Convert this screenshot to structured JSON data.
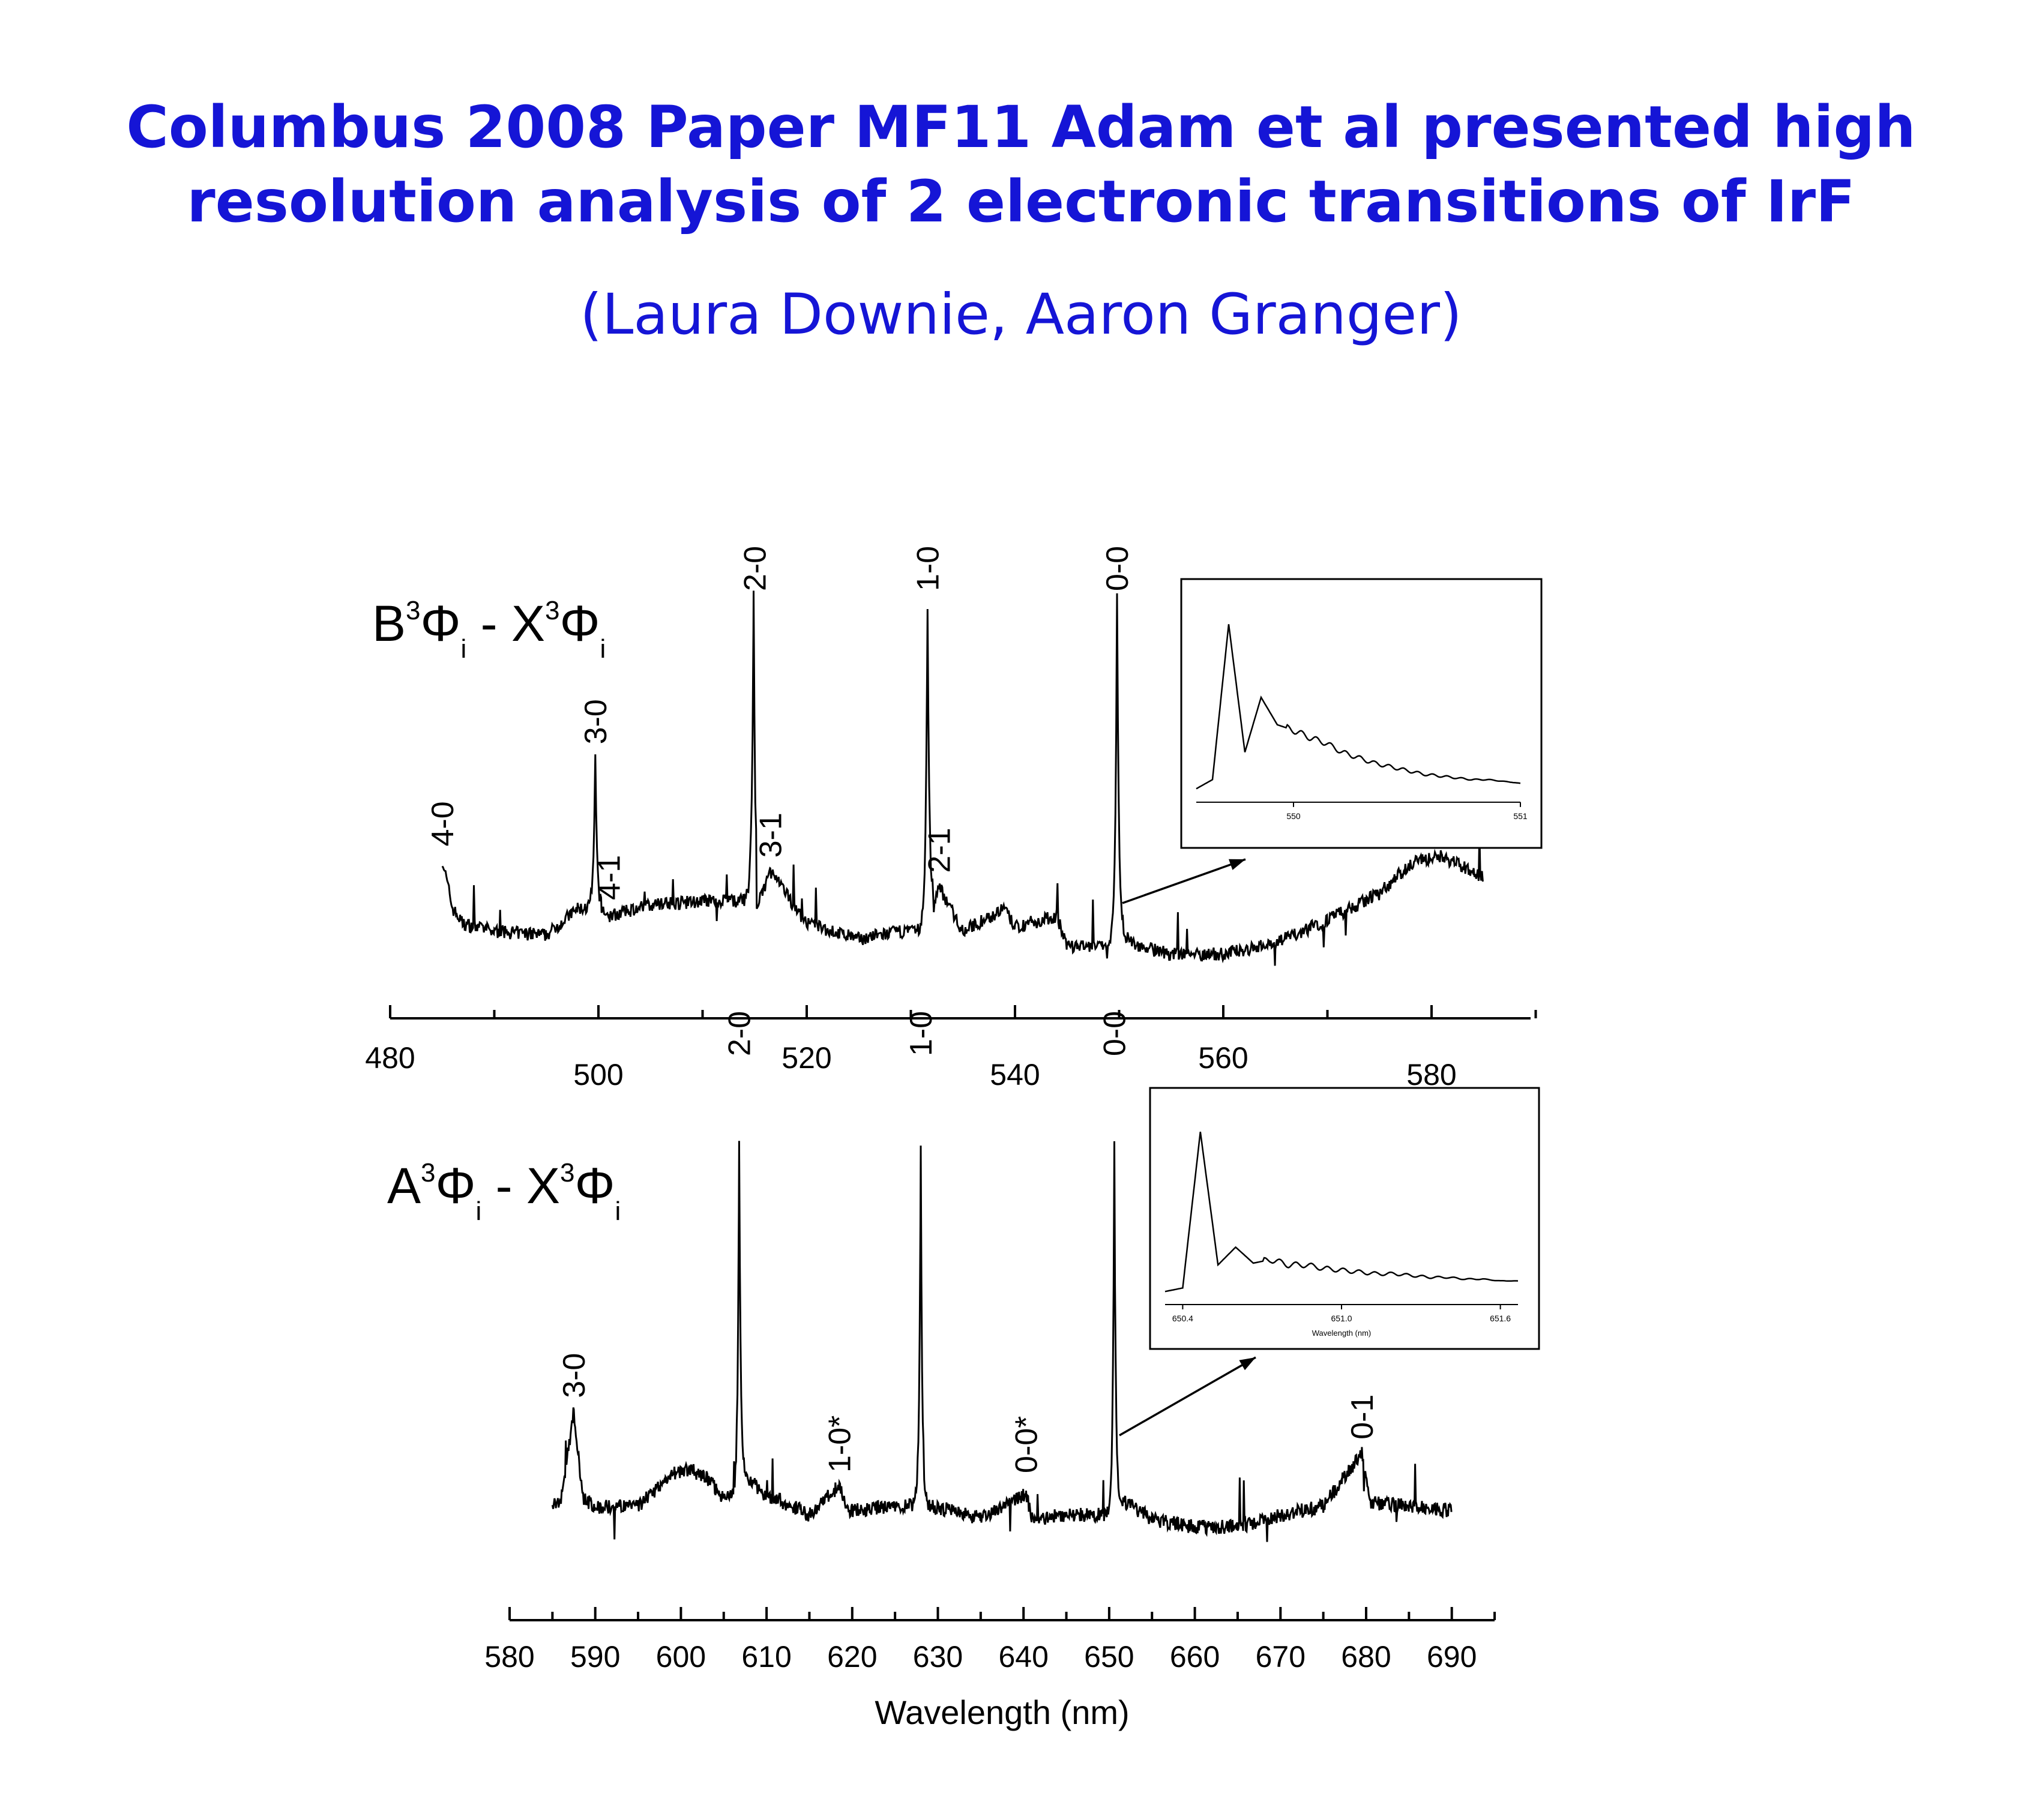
{
  "page": {
    "title_line1": "Columbus 2008 Paper MF11 Adam et al presented high",
    "title_line2": "resolution analysis of 2 electronic transitions of IrF",
    "subtitle": "(Laura Downie, Aaron Granger)",
    "title_color": "#1515d6"
  },
  "chart_data": [
    {
      "type": "line",
      "label_parts": [
        "B",
        "3",
        "Φ",
        "i",
        " - X",
        "3",
        "Φ",
        "i"
      ],
      "x_ticks": [
        "480",
        "500",
        "520",
        "540",
        "560",
        "580"
      ],
      "xlim": [
        480,
        590
      ],
      "xlabel": "",
      "ylabel": "",
      "series": [
        {
          "x": [
            485,
            486,
            487,
            490,
            495,
            498,
            499.7,
            500.3,
            501,
            505,
            510,
            514.9,
            515.2,
            516.5,
            520,
            525,
            529,
            531.6,
            532.2,
            532.7,
            535,
            539,
            540,
            544,
            545,
            549.8,
            550.5,
            552,
            555,
            560,
            565,
            570,
            575,
            578,
            581,
            585
          ],
          "y": [
            0.25,
            0.12,
            0.08,
            0.06,
            0.05,
            0.12,
            0.52,
            0.12,
            0.1,
            0.13,
            0.14,
            0.95,
            0.12,
            0.22,
            0.08,
            0.04,
            0.06,
            0.95,
            0.12,
            0.18,
            0.06,
            0.12,
            0.07,
            0.1,
            0.02,
            0.95,
            0.05,
            0.02,
            0.0,
            0.0,
            0.03,
            0.09,
            0.16,
            0.24,
            0.26,
            0.2
          ]
        }
      ],
      "peak_labels": [
        {
          "text": "4-0",
          "x": 485
        },
        {
          "text": "3-0",
          "x": 499.7
        },
        {
          "text": "4-1",
          "x": 501
        },
        {
          "text": "2-0",
          "x": 515
        },
        {
          "text": "3-1",
          "x": 516.5
        },
        {
          "text": "1-0",
          "x": 531.6
        },
        {
          "text": "2-1",
          "x": 532.7
        },
        {
          "text": "0-0",
          "x": 549.8
        }
      ],
      "inset": {
        "x_ticks": [
          "550",
          "551"
        ],
        "xlabel": "",
        "points": [
          0,
          0.05,
          0.9,
          0.2,
          0.5,
          0.35,
          0.32,
          0.28,
          0.25,
          0.2,
          0.17,
          0.14,
          0.12,
          0.1,
          0.08,
          0.07,
          0.06,
          0.05,
          0.05,
          0.04,
          0.03
        ]
      }
    },
    {
      "type": "line",
      "label_parts": [
        "A",
        "3",
        "Φ",
        "i",
        " - X",
        "3",
        "Φ",
        "i"
      ],
      "x_ticks": [
        "580",
        "590",
        "600",
        "610",
        "620",
        "630",
        "640",
        "650",
        "660",
        "670",
        "680",
        "690"
      ],
      "xlim": [
        580,
        695
      ],
      "xlabel": "Wavelength (nm)",
      "ylabel": "",
      "series": [
        {
          "x": [
            585,
            586,
            587.5,
            588.5,
            590,
            595,
            599,
            601,
            603,
            605,
            606.8,
            607.5,
            609.5,
            612,
            615,
            618.5,
            619.5,
            625,
            628,
            629,
            632,
            635,
            640.3,
            641,
            645,
            650.6,
            652,
            655,
            660,
            665,
            670,
            675,
            679.5,
            680.5,
            685,
            690
          ],
          "y": [
            0.05,
            0.07,
            0.28,
            0.07,
            0.05,
            0.05,
            0.13,
            0.14,
            0.12,
            0.07,
            0.95,
            0.13,
            0.08,
            0.06,
            0.03,
            0.1,
            0.04,
            0.05,
            0.93,
            0.05,
            0.04,
            0.02,
            0.08,
            0.02,
            0.03,
            0.93,
            0.06,
            0.02,
            0.0,
            0.0,
            0.03,
            0.05,
            0.18,
            0.06,
            0.05,
            0.04
          ]
        }
      ],
      "peak_labels": [
        {
          "text": "3-0",
          "x": 587.5
        },
        {
          "text": "2-0",
          "x": 606.8
        },
        {
          "text": "1-0*",
          "x": 618.5
        },
        {
          "text": "1-0",
          "x": 628
        },
        {
          "text": "0-0*",
          "x": 640.3
        },
        {
          "text": "0-0",
          "x": 650.6
        },
        {
          "text": "0-1",
          "x": 679.5
        }
      ],
      "inset": {
        "x_ticks": [
          "650.4",
          "651.0",
          "651.6"
        ],
        "xlabel": "Wavelength (nm)",
        "points": [
          0,
          0.02,
          0.9,
          0.15,
          0.25,
          0.16,
          0.18,
          0.15,
          0.15,
          0.13,
          0.12,
          0.11,
          0.1,
          0.1,
          0.09,
          0.08,
          0.08,
          0.07,
          0.07,
          0.06,
          0.06
        ]
      }
    }
  ]
}
